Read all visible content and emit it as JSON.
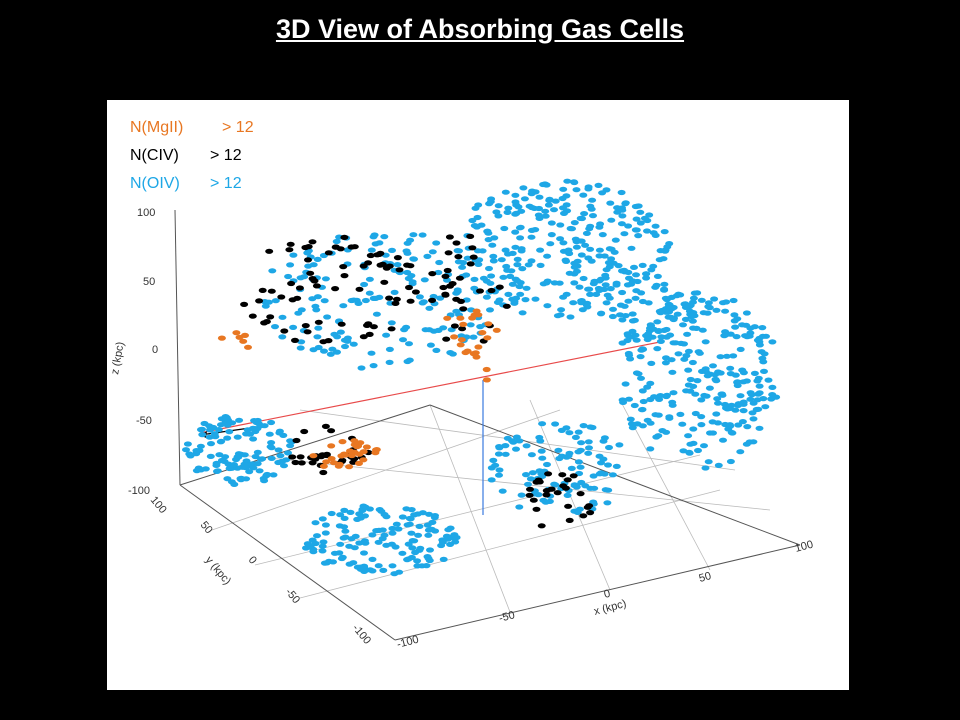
{
  "title": "3D View of Absorbing Gas Cells",
  "figure": {
    "legend": [
      {
        "label": "N(MgII)",
        "threshold": "> 12",
        "color": "#e87722"
      },
      {
        "label": "N(CIV)",
        "threshold": "> 12",
        "color": "#000000"
      },
      {
        "label": "N(OIV)",
        "threshold": "> 12",
        "color": "#1ea7e6"
      }
    ],
    "z_axis": {
      "label": "z (kpc)",
      "ticks": [
        "100",
        "50",
        "0",
        "-50",
        "-100"
      ]
    },
    "y_axis": {
      "label": "y (kpc)",
      "ticks": [
        "100",
        "50",
        "0",
        "-50",
        "-100"
      ]
    },
    "x_axis": {
      "label": "x (kpc)",
      "ticks": [
        "-100",
        "-50",
        "0",
        "50",
        "100"
      ]
    }
  }
}
